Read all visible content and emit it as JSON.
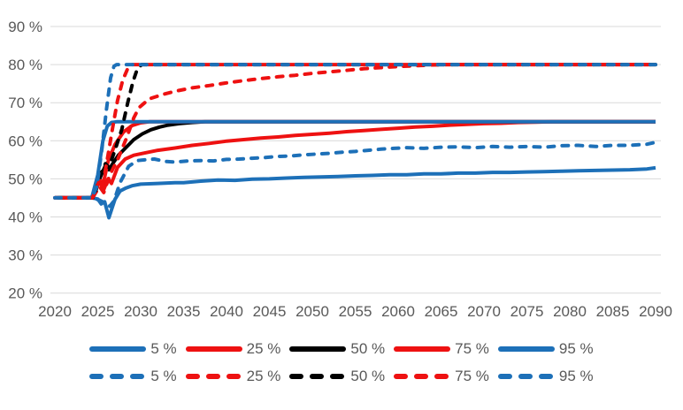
{
  "chart_data": {
    "type": "line",
    "title": "",
    "xlabel": "",
    "ylabel": "",
    "grid": "horizontal",
    "legend_position": "bottom",
    "xlim": [
      2020,
      2090
    ],
    "ylim": [
      20,
      90
    ],
    "x_tick_values": [
      2020,
      2025,
      2030,
      2035,
      2040,
      2045,
      2050,
      2055,
      2060,
      2065,
      2070,
      2075,
      2080,
      2085,
      2090
    ],
    "x_tick_labels": [
      "2020",
      "2025",
      "2030",
      "2035",
      "2040",
      "2045",
      "2050",
      "2055",
      "2060",
      "2065",
      "2070",
      "2075",
      "2080",
      "2085",
      "2090"
    ],
    "y_tick_values": [
      90,
      80,
      70,
      60,
      50,
      40,
      30,
      20
    ],
    "y_tick_labels": [
      "90 %",
      "80 %",
      "70 %",
      "60 %",
      "50 %",
      "40 %",
      "30 %",
      "20 %"
    ],
    "colors": {
      "blue": "#1D70B8",
      "red": "#EE1111",
      "black": "#000000",
      "grid": "#D9D9D9",
      "text": "#595959"
    },
    "legend": {
      "rows": [
        {
          "style": "solid",
          "entries": [
            {
              "label": "5 %",
              "color": "blue"
            },
            {
              "label": "25 %",
              "color": "red"
            },
            {
              "label": "50 %",
              "color": "black"
            },
            {
              "label": "75 %",
              "color": "red"
            },
            {
              "label": "95 %",
              "color": "blue"
            }
          ]
        },
        {
          "style": "dashed",
          "entries": [
            {
              "label": "5 %",
              "color": "blue"
            },
            {
              "label": "25 %",
              "color": "red"
            },
            {
              "label": "50 %",
              "color": "black"
            },
            {
              "label": "75 %",
              "color": "red"
            },
            {
              "label": "95 %",
              "color": "blue"
            }
          ]
        }
      ]
    },
    "series": [
      {
        "name": "solid-5",
        "label": "5 %",
        "color": "blue",
        "style": "solid",
        "points": [
          [
            2020,
            45
          ],
          [
            2024.3,
            45
          ],
          [
            2025,
            44.7
          ],
          [
            2025.4,
            43.4
          ],
          [
            2025.8,
            44
          ],
          [
            2026.3,
            39.8
          ],
          [
            2027,
            44.6
          ],
          [
            2027.6,
            46.8
          ],
          [
            2028.3,
            47.6
          ],
          [
            2029,
            48.2
          ],
          [
            2030,
            48.6
          ],
          [
            2032,
            48.8
          ],
          [
            2034,
            49
          ],
          [
            2035,
            49
          ],
          [
            2037,
            49.4
          ],
          [
            2039,
            49.7
          ],
          [
            2041,
            49.6
          ],
          [
            2043,
            49.9
          ],
          [
            2045,
            50
          ],
          [
            2047,
            50.2
          ],
          [
            2049,
            50.4
          ],
          [
            2051,
            50.5
          ],
          [
            2053,
            50.6
          ],
          [
            2055,
            50.8
          ],
          [
            2057,
            50.9
          ],
          [
            2059,
            51.1
          ],
          [
            2061,
            51.1
          ],
          [
            2063,
            51.3
          ],
          [
            2065,
            51.3
          ],
          [
            2067,
            51.5
          ],
          [
            2069,
            51.5
          ],
          [
            2071,
            51.7
          ],
          [
            2073,
            51.7
          ],
          [
            2075,
            51.8
          ],
          [
            2077,
            51.9
          ],
          [
            2079,
            52
          ],
          [
            2081,
            52.1
          ],
          [
            2083,
            52.2
          ],
          [
            2085,
            52.3
          ],
          [
            2087,
            52.4
          ],
          [
            2089,
            52.6
          ],
          [
            2090,
            52.9
          ]
        ]
      },
      {
        "name": "solid-25",
        "label": "25 %",
        "color": "red",
        "style": "solid",
        "points": [
          [
            2020,
            45
          ],
          [
            2024.4,
            45
          ],
          [
            2025.2,
            49.3
          ],
          [
            2025.7,
            47.2
          ],
          [
            2026.2,
            50
          ],
          [
            2026.6,
            48.8
          ],
          [
            2027.3,
            53
          ],
          [
            2028.2,
            55.2
          ],
          [
            2029.2,
            56.2
          ],
          [
            2030.5,
            56.8
          ],
          [
            2032,
            57.5
          ],
          [
            2034,
            58.1
          ],
          [
            2036,
            58.8
          ],
          [
            2038,
            59.3
          ],
          [
            2040,
            59.9
          ],
          [
            2042,
            60.3
          ],
          [
            2044,
            60.7
          ],
          [
            2046,
            61
          ],
          [
            2048,
            61.4
          ],
          [
            2050,
            61.7
          ],
          [
            2052,
            62
          ],
          [
            2054,
            62.4
          ],
          [
            2056,
            62.7
          ],
          [
            2058,
            63
          ],
          [
            2060,
            63.3
          ],
          [
            2062,
            63.6
          ],
          [
            2064,
            63.8
          ],
          [
            2066,
            64.1
          ],
          [
            2068,
            64.3
          ],
          [
            2070,
            64.5
          ],
          [
            2072,
            64.6
          ],
          [
            2074,
            64.8
          ],
          [
            2076,
            64.9
          ],
          [
            2078,
            65
          ],
          [
            2090,
            65
          ]
        ]
      },
      {
        "name": "solid-50",
        "label": "50 %",
        "color": "black",
        "style": "solid",
        "points": [
          [
            2020,
            45
          ],
          [
            2024.4,
            45
          ],
          [
            2025.4,
            51
          ],
          [
            2025.9,
            53.5
          ],
          [
            2026.3,
            52.4
          ],
          [
            2026.8,
            54.2
          ],
          [
            2027.4,
            56.2
          ],
          [
            2028.2,
            58
          ],
          [
            2029.2,
            60.3
          ],
          [
            2030.2,
            61.8
          ],
          [
            2031.2,
            62.9
          ],
          [
            2032.2,
            63.6
          ],
          [
            2033.2,
            64.1
          ],
          [
            2034.5,
            64.5
          ],
          [
            2036,
            64.8
          ],
          [
            2037.5,
            65
          ],
          [
            2090,
            65
          ]
        ]
      },
      {
        "name": "solid-75",
        "label": "75 %",
        "color": "red",
        "style": "solid",
        "points": [
          [
            2020,
            45
          ],
          [
            2024.4,
            45
          ],
          [
            2025.2,
            49.8
          ],
          [
            2025.6,
            48.3
          ],
          [
            2026.2,
            54.5
          ],
          [
            2027,
            59
          ],
          [
            2028,
            62.3
          ],
          [
            2029,
            64
          ],
          [
            2030,
            64.7
          ],
          [
            2031,
            65
          ],
          [
            2090,
            65
          ]
        ]
      },
      {
        "name": "solid-95",
        "label": "95 %",
        "color": "blue",
        "style": "solid",
        "points": [
          [
            2020,
            45
          ],
          [
            2024.3,
            45
          ],
          [
            2025,
            51
          ],
          [
            2025.6,
            60
          ],
          [
            2026.1,
            63.8
          ],
          [
            2026.6,
            64.8
          ],
          [
            2027.2,
            65
          ],
          [
            2090,
            65
          ]
        ]
      },
      {
        "name": "dashed-5",
        "label": "5 %",
        "color": "blue",
        "style": "dashed",
        "points": [
          [
            2020,
            45
          ],
          [
            2024.4,
            45
          ],
          [
            2025.2,
            44.4
          ],
          [
            2025.8,
            43.7
          ],
          [
            2026.4,
            42.8
          ],
          [
            2026.9,
            44.2
          ],
          [
            2027.6,
            49
          ],
          [
            2028.6,
            53.3
          ],
          [
            2029.6,
            54.8
          ],
          [
            2030.6,
            55
          ],
          [
            2031.6,
            55.2
          ],
          [
            2032.8,
            54.6
          ],
          [
            2034,
            54.4
          ],
          [
            2035.5,
            54.7
          ],
          [
            2037,
            54.8
          ],
          [
            2038.5,
            54.7
          ],
          [
            2040,
            55.1
          ],
          [
            2041.5,
            55.2
          ],
          [
            2043,
            55.4
          ],
          [
            2044.5,
            55.6
          ],
          [
            2046,
            55.9
          ],
          [
            2047.5,
            56
          ],
          [
            2049,
            56.3
          ],
          [
            2050.5,
            56.5
          ],
          [
            2052,
            56.7
          ],
          [
            2053.5,
            57
          ],
          [
            2055,
            57.2
          ],
          [
            2056.5,
            57.5
          ],
          [
            2058,
            57.8
          ],
          [
            2059.5,
            58
          ],
          [
            2061,
            58.2
          ],
          [
            2063,
            58
          ],
          [
            2065,
            58.3
          ],
          [
            2067,
            58.4
          ],
          [
            2069,
            58.2
          ],
          [
            2071,
            58.5
          ],
          [
            2073,
            58.3
          ],
          [
            2075,
            58.5
          ],
          [
            2077,
            58.3
          ],
          [
            2079,
            58.7
          ],
          [
            2081,
            58.8
          ],
          [
            2083,
            58.5
          ],
          [
            2085,
            58.8
          ],
          [
            2087,
            58.8
          ],
          [
            2089,
            59.1
          ],
          [
            2090,
            59.6
          ]
        ]
      },
      {
        "name": "dashed-25",
        "label": "25 %",
        "color": "red",
        "style": "dashed",
        "points": [
          [
            2020,
            45
          ],
          [
            2024.4,
            45
          ],
          [
            2025.2,
            48
          ],
          [
            2025.7,
            46.4
          ],
          [
            2026.4,
            51
          ],
          [
            2027.4,
            55.5
          ],
          [
            2028.4,
            61
          ],
          [
            2029.2,
            66
          ],
          [
            2029.8,
            68.7
          ],
          [
            2031,
            71
          ],
          [
            2032.5,
            72.1
          ],
          [
            2034,
            73
          ],
          [
            2036,
            73.9
          ],
          [
            2038,
            74.5
          ],
          [
            2040,
            75.2
          ],
          [
            2042,
            75.8
          ],
          [
            2044,
            76.3
          ],
          [
            2046,
            76.8
          ],
          [
            2048,
            77.2
          ],
          [
            2050,
            77.7
          ],
          [
            2052,
            78.1
          ],
          [
            2054,
            78.5
          ],
          [
            2056,
            78.9
          ],
          [
            2058,
            79.2
          ],
          [
            2060,
            79.5
          ],
          [
            2062,
            79.7
          ],
          [
            2064,
            79.9
          ],
          [
            2066,
            80
          ],
          [
            2090,
            80
          ]
        ]
      },
      {
        "name": "dashed-50",
        "label": "50 %",
        "color": "black",
        "style": "dashed",
        "points": [
          [
            2020,
            45
          ],
          [
            2024.5,
            45
          ],
          [
            2025.4,
            51.5
          ],
          [
            2025.9,
            54
          ],
          [
            2026.3,
            53
          ],
          [
            2027,
            57.5
          ],
          [
            2027.8,
            63
          ],
          [
            2028.5,
            70
          ],
          [
            2029.1,
            75.5
          ],
          [
            2029.6,
            78.8
          ],
          [
            2030.1,
            80
          ],
          [
            2090,
            80
          ]
        ]
      },
      {
        "name": "dashed-75",
        "label": "75 %",
        "color": "red",
        "style": "dashed",
        "points": [
          [
            2020,
            45
          ],
          [
            2024.4,
            45
          ],
          [
            2025.1,
            49
          ],
          [
            2025.5,
            47.4
          ],
          [
            2026.1,
            55
          ],
          [
            2026.7,
            63
          ],
          [
            2027.3,
            70.5
          ],
          [
            2027.9,
            75.8
          ],
          [
            2028.5,
            79
          ],
          [
            2028.9,
            80
          ],
          [
            2090,
            80
          ]
        ]
      },
      {
        "name": "dashed-95",
        "label": "95 %",
        "color": "blue",
        "style": "dashed",
        "points": [
          [
            2020,
            45
          ],
          [
            2024.3,
            45
          ],
          [
            2024.9,
            48
          ],
          [
            2025.5,
            58
          ],
          [
            2026,
            68
          ],
          [
            2026.5,
            76.5
          ],
          [
            2026.9,
            79.6
          ],
          [
            2027.2,
            80
          ],
          [
            2090,
            80
          ]
        ]
      }
    ]
  }
}
